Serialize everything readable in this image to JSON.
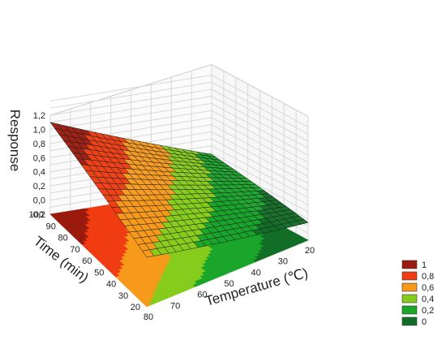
{
  "chart_data": {
    "type": "surface",
    "title": "",
    "xlabel": "Temperature (℃)",
    "ylabel": "Time (min)",
    "zlabel": "Response",
    "x_ticks": [
      "20",
      "30",
      "40",
      "50",
      "60",
      "70",
      "80"
    ],
    "y_ticks": [
      "20",
      "30",
      "40",
      "50",
      "60",
      "70",
      "80",
      "90",
      "100"
    ],
    "z_ticks": [
      "-0,2",
      "0,0",
      "0,2",
      "0,4",
      "0,6",
      "0,8",
      "1,0",
      "1,2"
    ],
    "xlim": [
      20,
      80
    ],
    "ylim": [
      20,
      100
    ],
    "zlim": [
      -0.2,
      1.2
    ],
    "surface_corners": [
      {
        "temperature": 80,
        "time": 100,
        "response": 1.1
      },
      {
        "temperature": 80,
        "time": 20,
        "response": 0.5
      },
      {
        "temperature": 20,
        "time": 100,
        "response": 0.28
      },
      {
        "temperature": 20,
        "time": 20,
        "response": 0.05
      }
    ],
    "legend": {
      "placement": "bottom-right",
      "levels": [
        {
          "label": "1",
          "color": "#9b1b0e"
        },
        {
          "label": "0,8",
          "color": "#f03c12"
        },
        {
          "label": "0,6",
          "color": "#f79a1c"
        },
        {
          "label": "0,4",
          "color": "#86cc1d"
        },
        {
          "label": "0,2",
          "color": "#1aa52b"
        },
        {
          "label": "0",
          "color": "#126e26"
        }
      ]
    },
    "grid": true
  }
}
